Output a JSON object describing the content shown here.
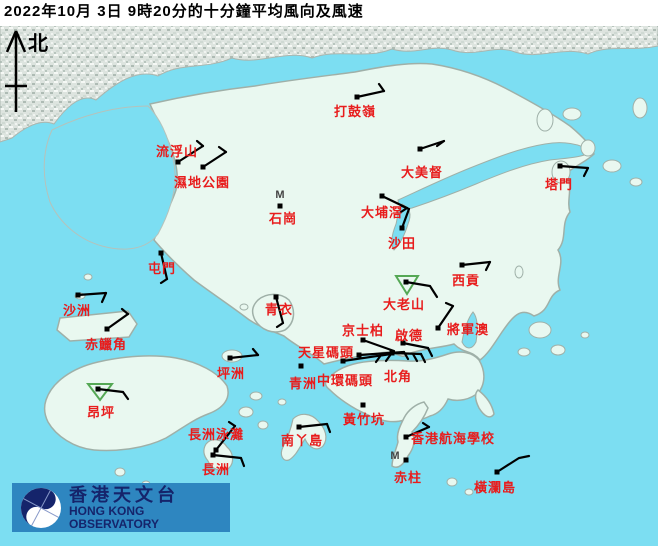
{
  "title": "2022年10月 3日 9時20分的十分鐘平均風向及風速",
  "compass": {
    "north_label": "北"
  },
  "colors": {
    "sea": "#7cdef2",
    "land": "#e9f8f0",
    "coast": "#9fb0a8",
    "urban_base": "#dde4df",
    "station_label_red": "#e81c1c",
    "barb_black": "#000000",
    "triangle_green": "#55a855",
    "m_marker_gray": "#444444",
    "logo_blue": "#2e86c0",
    "logo_navy": "#15246b"
  },
  "logo": {
    "chinese": "香港天文台",
    "english": "HONG KONG OBSERVATORY"
  },
  "stations": [
    {
      "id": "ta-kwu-ling",
      "name": "打鼓嶺",
      "dot": [
        357,
        97
      ],
      "label": [
        334,
        105
      ],
      "segs": [
        [
          [
            357,
            97
          ],
          [
            384,
            91
          ]
        ],
        [
          [
            384,
            91
          ],
          [
            379,
            84
          ]
        ]
      ]
    },
    {
      "id": "lau-fau-shan",
      "name": "流浮山",
      "dot": [
        178,
        162
      ],
      "label": [
        156,
        145
      ],
      "segs": [
        [
          [
            178,
            162
          ],
          [
            203,
            146
          ]
        ],
        [
          [
            203,
            146
          ],
          [
            197,
            141
          ]
        ]
      ]
    },
    {
      "id": "wetland-park",
      "name": "濕地公園",
      "dot": [
        203,
        167
      ],
      "label": [
        174,
        176
      ],
      "segs": [
        [
          [
            203,
            167
          ],
          [
            226,
            152
          ]
        ],
        [
          [
            226,
            152
          ],
          [
            219,
            147
          ]
        ]
      ]
    },
    {
      "id": "shek-kong",
      "name": "石崗",
      "dot": [
        280,
        206
      ],
      "label": [
        269,
        212
      ],
      "m": [
        280,
        198
      ],
      "segs": []
    },
    {
      "id": "tai-mei-tuk",
      "name": "大美督",
      "dot": [
        420,
        149
      ],
      "label": [
        401,
        166
      ],
      "segs": [
        [
          [
            420,
            149
          ],
          [
            444,
            141
          ]
        ],
        [
          [
            444,
            141
          ],
          [
            437,
            146
          ]
        ]
      ]
    },
    {
      "id": "tap-mun",
      "name": "塔門",
      "dot": [
        560,
        166
      ],
      "label": [
        545,
        178
      ],
      "segs": [
        [
          [
            560,
            166
          ],
          [
            588,
            168
          ]
        ],
        [
          [
            588,
            168
          ],
          [
            584,
            176
          ]
        ]
      ]
    },
    {
      "id": "tai-po-kau",
      "name": "大埔滘",
      "dot": [
        382,
        196
      ],
      "label": [
        361,
        206
      ],
      "segs": [
        [
          [
            382,
            196
          ],
          [
            407,
            208
          ]
        ],
        [
          [
            407,
            208
          ],
          [
            401,
            212
          ]
        ]
      ]
    },
    {
      "id": "sha-tin",
      "name": "沙田",
      "dot": [
        402,
        228
      ],
      "label": [
        388,
        237
      ],
      "segs": [
        [
          [
            402,
            228
          ],
          [
            409,
            209
          ]
        ],
        [
          [
            409,
            209
          ],
          [
            402,
            206
          ]
        ]
      ]
    },
    {
      "id": "sai-kung",
      "name": "西貢",
      "dot": [
        462,
        265
      ],
      "label": [
        452,
        274
      ],
      "segs": [
        [
          [
            462,
            265
          ],
          [
            490,
            262
          ]
        ],
        [
          [
            490,
            262
          ],
          [
            486,
            270
          ]
        ]
      ]
    },
    {
      "id": "tates-cairn",
      "name": "大老山",
      "dot": [
        406,
        282
      ],
      "label": [
        383,
        298
      ],
      "tri": [
        [
          396,
          276
        ],
        [
          418,
          276
        ],
        [
          407,
          294
        ]
      ],
      "segs": [
        [
          [
            406,
            282
          ],
          [
            430,
            286
          ],
          [
            437,
            297
          ]
        ]
      ]
    },
    {
      "id": "tuen-mun",
      "name": "屯門",
      "dot": [
        161,
        253
      ],
      "label": [
        148,
        262
      ],
      "segs": [
        [
          [
            161,
            253
          ],
          [
            167,
            279
          ]
        ],
        [
          [
            167,
            279
          ],
          [
            161,
            283
          ]
        ]
      ]
    },
    {
      "id": "tsing-yi",
      "name": "青衣",
      "dot": [
        276,
        297
      ],
      "label": [
        265,
        303
      ],
      "segs": [
        [
          [
            276,
            297
          ],
          [
            283,
            323
          ]
        ],
        [
          [
            283,
            323
          ],
          [
            277,
            327
          ]
        ]
      ]
    },
    {
      "id": "sha-chau",
      "name": "沙洲",
      "dot": [
        78,
        295
      ],
      "label": [
        63,
        304
      ],
      "segs": [
        [
          [
            78,
            295
          ],
          [
            106,
            293
          ]
        ],
        [
          [
            106,
            293
          ],
          [
            102,
            302
          ]
        ]
      ]
    },
    {
      "id": "chek-lap-kok",
      "name": "赤鱲角",
      "dot": [
        107,
        329
      ],
      "label": [
        85,
        338
      ],
      "segs": [
        [
          [
            107,
            329
          ],
          [
            128,
            314
          ]
        ],
        [
          [
            128,
            314
          ],
          [
            122,
            309
          ]
        ]
      ]
    },
    {
      "id": "ngong-ping",
      "name": "昂坪",
      "dot": [
        98,
        389
      ],
      "label": [
        87,
        406
      ],
      "tri": [
        [
          88,
          384
        ],
        [
          112,
          384
        ],
        [
          100,
          400
        ]
      ],
      "segs": [
        [
          [
            98,
            389
          ],
          [
            123,
            392
          ]
        ],
        [
          [
            123,
            392
          ],
          [
            128,
            399
          ]
        ]
      ]
    },
    {
      "id": "kings-park",
      "name": "京士柏",
      "dot": [
        363,
        340
      ],
      "label": [
        342,
        324
      ],
      "segs": [
        [
          [
            363,
            340
          ],
          [
            394,
            351
          ]
        ]
      ]
    },
    {
      "id": "kai-tak",
      "name": "啟德",
      "dot": [
        403,
        343
      ],
      "label": [
        395,
        329
      ],
      "segs": [
        [
          [
            403,
            343
          ],
          [
            428,
            348
          ]
        ],
        [
          [
            428,
            348
          ],
          [
            432,
            356
          ]
        ]
      ]
    },
    {
      "id": "tseung-kwan-o",
      "name": "將軍澳",
      "dot": [
        438,
        328
      ],
      "label": [
        447,
        323
      ],
      "segs": [
        [
          [
            438,
            328
          ],
          [
            453,
            306
          ]
        ],
        [
          [
            453,
            306
          ],
          [
            446,
            303
          ]
        ]
      ]
    },
    {
      "id": "star-ferry-pier",
      "name": "天星碼頭",
      "dot": [
        359,
        355
      ],
      "label": [
        298,
        346
      ],
      "segs": [
        [
          [
            359,
            355
          ],
          [
            404,
            352
          ]
        ],
        [
          [
            404,
            352
          ],
          [
            408,
            359
          ]
        ]
      ]
    },
    {
      "id": "central-pier",
      "name": "中環碼頭",
      "dot": [
        343,
        361
      ],
      "label": [
        317,
        374
      ],
      "segs": [
        [
          [
            343,
            361
          ],
          [
            391,
            354
          ]
        ],
        [
          [
            391,
            354
          ],
          [
            386,
            361
          ]
        ],
        [
          [
            381,
            355
          ],
          [
            376,
            362
          ]
        ]
      ]
    },
    {
      "id": "north-point",
      "name": "北角",
      "dot": [
        392,
        353
      ],
      "label": [
        384,
        370
      ],
      "segs": [
        [
          [
            392,
            353
          ],
          [
            421,
            354
          ]
        ],
        [
          [
            421,
            354
          ],
          [
            425,
            362
          ]
        ],
        [
          [
            413,
            354
          ],
          [
            417,
            361
          ]
        ]
      ]
    },
    {
      "id": "green-island",
      "name": "青洲",
      "dot": [
        301,
        366
      ],
      "label": [
        289,
        377
      ],
      "segs": []
    },
    {
      "id": "wong-chuk-hang",
      "name": "黃竹坑",
      "dot": [
        363,
        405
      ],
      "label": [
        343,
        413
      ],
      "segs": []
    },
    {
      "id": "peng-chau",
      "name": "坪洲",
      "dot": [
        230,
        358
      ],
      "label": [
        217,
        367
      ],
      "segs": [
        [
          [
            230,
            358
          ],
          [
            258,
            355
          ]
        ],
        [
          [
            258,
            355
          ],
          [
            253,
            349
          ]
        ]
      ]
    },
    {
      "id": "lamma-island",
      "name": "南丫島",
      "dot": [
        299,
        427
      ],
      "label": [
        281,
        434
      ],
      "segs": [
        [
          [
            299,
            427
          ],
          [
            327,
            424
          ]
        ],
        [
          [
            327,
            424
          ],
          [
            330,
            432
          ]
        ]
      ]
    },
    {
      "id": "cheung-chau-beach",
      "name": "長洲泳灘",
      "dot": [
        216,
        450
      ],
      "label": [
        188,
        428
      ],
      "segs": [
        [
          [
            216,
            450
          ],
          [
            235,
            426
          ]
        ],
        [
          [
            235,
            426
          ],
          [
            229,
            422
          ]
        ]
      ]
    },
    {
      "id": "cheung-chau",
      "name": "長洲",
      "dot": [
        213,
        455
      ],
      "label": [
        202,
        463
      ],
      "segs": [
        [
          [
            213,
            455
          ],
          [
            241,
            458
          ]
        ],
        [
          [
            241,
            458
          ],
          [
            244,
            466
          ]
        ]
      ]
    },
    {
      "id": "hk-sea-school",
      "name": "香港航海學校",
      "dot": [
        406,
        437
      ],
      "label": [
        411,
        432
      ],
      "segs": [
        [
          [
            406,
            437
          ],
          [
            429,
            427
          ]
        ],
        [
          [
            429,
            427
          ],
          [
            423,
            423
          ]
        ]
      ]
    },
    {
      "id": "stanley",
      "name": "赤柱",
      "dot": [
        406,
        460
      ],
      "label": [
        394,
        471
      ],
      "m": [
        395,
        459
      ],
      "segs": []
    },
    {
      "id": "waglan-island",
      "name": "橫瀾島",
      "dot": [
        497,
        472
      ],
      "label": [
        474,
        481
      ],
      "segs": [
        [
          [
            497,
            472
          ],
          [
            519,
            458
          ],
          [
            529,
            456
          ]
        ]
      ]
    }
  ]
}
